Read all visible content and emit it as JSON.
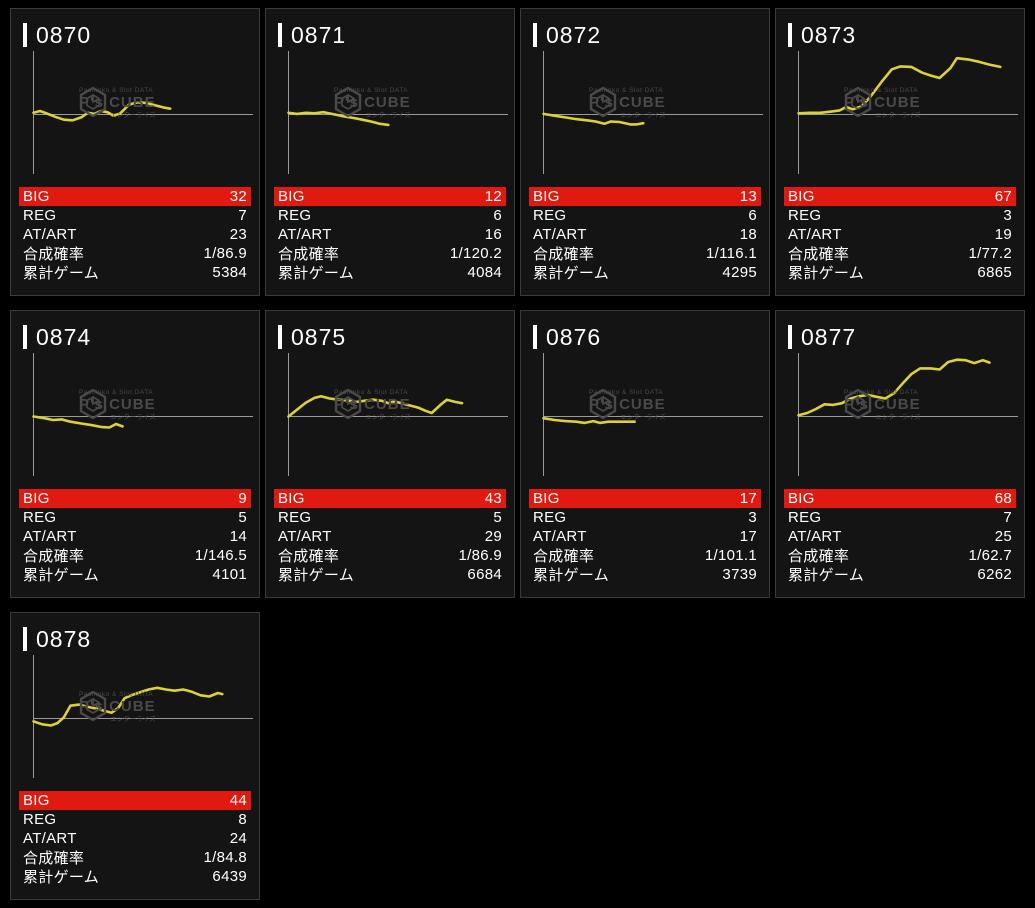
{
  "page": {
    "background": "#000000",
    "card_background": "#141414",
    "highlight_red": "#e01a10",
    "line_yellow": "#ddd13a",
    "axis_gray": "#9a9a9a"
  },
  "watermark": {
    "top_line": "Pachinko & Slot DATA",
    "brand": "P's CUBE",
    "tagline": "エンターライズ"
  },
  "stat_rows": [
    {
      "key": "big",
      "label": "BIG",
      "highlight": true
    },
    {
      "key": "reg",
      "label": "REG",
      "highlight": false
    },
    {
      "key": "at_art",
      "label": "AT/ART",
      "highlight": false
    },
    {
      "key": "combined_rate",
      "label": "合成確率",
      "highlight": false
    },
    {
      "key": "total_games",
      "label": "累計ゲーム",
      "highlight": false
    }
  ],
  "machines": [
    {
      "id": "0870",
      "big": "32",
      "reg": "7",
      "at_art": "23",
      "combined_rate": "1/86.9",
      "total_games": "5384"
    },
    {
      "id": "0871",
      "big": "12",
      "reg": "6",
      "at_art": "16",
      "combined_rate": "1/120.2",
      "total_games": "4084"
    },
    {
      "id": "0872",
      "big": "13",
      "reg": "6",
      "at_art": "18",
      "combined_rate": "1/116.1",
      "total_games": "4295"
    },
    {
      "id": "0873",
      "big": "67",
      "reg": "3",
      "at_art": "19",
      "combined_rate": "1/77.2",
      "total_games": "6865"
    },
    {
      "id": "0874",
      "big": "9",
      "reg": "5",
      "at_art": "14",
      "combined_rate": "1/146.5",
      "total_games": "4101"
    },
    {
      "id": "0875",
      "big": "43",
      "reg": "5",
      "at_art": "29",
      "combined_rate": "1/86.9",
      "total_games": "6684"
    },
    {
      "id": "0876",
      "big": "17",
      "reg": "3",
      "at_art": "17",
      "combined_rate": "1/101.1",
      "total_games": "3739"
    },
    {
      "id": "0877",
      "big": "68",
      "reg": "7",
      "at_art": "25",
      "combined_rate": "1/62.7",
      "total_games": "6262"
    },
    {
      "id": "0878",
      "big": "44",
      "reg": "8",
      "at_art": "24",
      "combined_rate": "1/84.8",
      "total_games": "6439"
    }
  ],
  "chart_data": [
    {
      "type": "line",
      "machine": "0870",
      "x_axis": "games (normalized)",
      "y_axis": "payout trend (normalized, 0 = start line)",
      "points": [
        [
          0,
          0.03
        ],
        [
          0.03,
          0.06
        ],
        [
          0.06,
          0.02
        ],
        [
          0.1,
          -0.04
        ],
        [
          0.14,
          -0.09
        ],
        [
          0.18,
          -0.1
        ],
        [
          0.22,
          -0.05
        ],
        [
          0.25,
          0.03
        ],
        [
          0.28,
          0.01
        ],
        [
          0.31,
          0.06
        ],
        [
          0.34,
          0.04
        ],
        [
          0.37,
          -0.02
        ],
        [
          0.4,
          0.02
        ],
        [
          0.44,
          0.17
        ],
        [
          0.48,
          0.21
        ],
        [
          0.52,
          0.2
        ],
        [
          0.56,
          0.16
        ],
        [
          0.6,
          0.12
        ],
        [
          0.63,
          0.1
        ]
      ]
    },
    {
      "type": "line",
      "machine": "0871",
      "x_axis": "games (normalized)",
      "y_axis": "payout trend (normalized, 0 = start line)",
      "points": [
        [
          0,
          0.03
        ],
        [
          0.04,
          0.01
        ],
        [
          0.08,
          0.03
        ],
        [
          0.12,
          0.02
        ],
        [
          0.16,
          0.04
        ],
        [
          0.2,
          0.01
        ],
        [
          0.25,
          -0.03
        ],
        [
          0.3,
          -0.06
        ],
        [
          0.34,
          -0.09
        ],
        [
          0.38,
          -0.12
        ],
        [
          0.42,
          -0.16
        ],
        [
          0.46,
          -0.18
        ]
      ]
    },
    {
      "type": "line",
      "machine": "0872",
      "x_axis": "games (normalized)",
      "y_axis": "payout trend (normalized, 0 = start line)",
      "points": [
        [
          0,
          0.01
        ],
        [
          0.05,
          -0.02
        ],
        [
          0.1,
          -0.05
        ],
        [
          0.15,
          -0.08
        ],
        [
          0.2,
          -0.1
        ],
        [
          0.24,
          -0.12
        ],
        [
          0.28,
          -0.16
        ],
        [
          0.31,
          -0.12
        ],
        [
          0.35,
          -0.13
        ],
        [
          0.4,
          -0.17
        ],
        [
          0.43,
          -0.17
        ],
        [
          0.46,
          -0.15
        ]
      ]
    },
    {
      "type": "line",
      "machine": "0873",
      "x_axis": "games (normalized)",
      "y_axis": "payout trend (normalized, 0 = start line)",
      "points": [
        [
          0,
          0.02
        ],
        [
          0.05,
          0.03
        ],
        [
          0.1,
          0.03
        ],
        [
          0.15,
          0.05
        ],
        [
          0.19,
          0.07
        ],
        [
          0.22,
          0.13
        ],
        [
          0.25,
          0.09
        ],
        [
          0.29,
          0.14
        ],
        [
          0.33,
          0.3
        ],
        [
          0.38,
          0.55
        ],
        [
          0.43,
          0.78
        ],
        [
          0.47,
          0.83
        ],
        [
          0.52,
          0.82
        ],
        [
          0.57,
          0.72
        ],
        [
          0.61,
          0.67
        ],
        [
          0.65,
          0.63
        ],
        [
          0.7,
          0.8
        ],
        [
          0.73,
          0.97
        ],
        [
          0.78,
          0.95
        ],
        [
          0.83,
          0.91
        ],
        [
          0.88,
          0.86
        ],
        [
          0.93,
          0.82
        ]
      ]
    },
    {
      "type": "line",
      "machine": "0874",
      "x_axis": "games (normalized)",
      "y_axis": "payout trend (normalized, 0 = start line)",
      "points": [
        [
          0,
          0.0
        ],
        [
          0.05,
          -0.03
        ],
        [
          0.09,
          -0.06
        ],
        [
          0.13,
          -0.05
        ],
        [
          0.17,
          -0.09
        ],
        [
          0.22,
          -0.12
        ],
        [
          0.27,
          -0.15
        ],
        [
          0.31,
          -0.18
        ],
        [
          0.35,
          -0.19
        ],
        [
          0.38,
          -0.13
        ],
        [
          0.41,
          -0.17
        ]
      ]
    },
    {
      "type": "line",
      "machine": "0875",
      "x_axis": "games (normalized)",
      "y_axis": "payout trend (normalized, 0 = start line)",
      "points": [
        [
          0,
          0.0
        ],
        [
          0.04,
          0.12
        ],
        [
          0.08,
          0.24
        ],
        [
          0.12,
          0.32
        ],
        [
          0.15,
          0.35
        ],
        [
          0.19,
          0.31
        ],
        [
          0.23,
          0.29
        ],
        [
          0.27,
          0.28
        ],
        [
          0.31,
          0.25
        ],
        [
          0.35,
          0.27
        ],
        [
          0.39,
          0.29
        ],
        [
          0.43,
          0.27
        ],
        [
          0.46,
          0.23
        ],
        [
          0.49,
          0.26
        ],
        [
          0.52,
          0.23
        ],
        [
          0.56,
          0.19
        ],
        [
          0.6,
          0.15
        ],
        [
          0.63,
          0.1
        ],
        [
          0.66,
          0.06
        ],
        [
          0.7,
          0.2
        ],
        [
          0.73,
          0.29
        ],
        [
          0.77,
          0.25
        ],
        [
          0.8,
          0.23
        ]
      ]
    },
    {
      "type": "line",
      "machine": "0876",
      "x_axis": "games (normalized)",
      "y_axis": "payout trend (normalized, 0 = start line)",
      "points": [
        [
          0,
          -0.03
        ],
        [
          0.05,
          -0.06
        ],
        [
          0.1,
          -0.08
        ],
        [
          0.15,
          -0.09
        ],
        [
          0.19,
          -0.11
        ],
        [
          0.23,
          -0.08
        ],
        [
          0.26,
          -0.11
        ],
        [
          0.3,
          -0.09
        ],
        [
          0.35,
          -0.09
        ],
        [
          0.39,
          -0.09
        ],
        [
          0.42,
          -0.09
        ]
      ]
    },
    {
      "type": "line",
      "machine": "0877",
      "x_axis": "games (normalized)",
      "y_axis": "payout trend (normalized, 0 = start line)",
      "points": [
        [
          0,
          0.02
        ],
        [
          0.04,
          0.06
        ],
        [
          0.08,
          0.13
        ],
        [
          0.12,
          0.21
        ],
        [
          0.16,
          0.2
        ],
        [
          0.2,
          0.23
        ],
        [
          0.24,
          0.31
        ],
        [
          0.28,
          0.35
        ],
        [
          0.32,
          0.37
        ],
        [
          0.36,
          0.34
        ],
        [
          0.4,
          0.31
        ],
        [
          0.44,
          0.4
        ],
        [
          0.48,
          0.57
        ],
        [
          0.52,
          0.73
        ],
        [
          0.56,
          0.83
        ],
        [
          0.61,
          0.83
        ],
        [
          0.65,
          0.81
        ],
        [
          0.69,
          0.94
        ],
        [
          0.73,
          0.98
        ],
        [
          0.77,
          0.97
        ],
        [
          0.81,
          0.92
        ],
        [
          0.85,
          0.97
        ],
        [
          0.88,
          0.93
        ]
      ]
    },
    {
      "type": "line",
      "machine": "0878",
      "x_axis": "games (normalized)",
      "y_axis": "payout trend (normalized, 0 = start line)",
      "points": [
        [
          0,
          -0.05
        ],
        [
          0.04,
          -0.1
        ],
        [
          0.08,
          -0.12
        ],
        [
          0.11,
          -0.08
        ],
        [
          0.14,
          0.02
        ],
        [
          0.17,
          0.22
        ],
        [
          0.21,
          0.24
        ],
        [
          0.25,
          0.2
        ],
        [
          0.29,
          0.17
        ],
        [
          0.33,
          0.13
        ],
        [
          0.36,
          0.1
        ],
        [
          0.39,
          0.18
        ],
        [
          0.42,
          0.35
        ],
        [
          0.45,
          0.4
        ],
        [
          0.49,
          0.45
        ],
        [
          0.53,
          0.5
        ],
        [
          0.57,
          0.53
        ],
        [
          0.61,
          0.5
        ],
        [
          0.65,
          0.48
        ],
        [
          0.69,
          0.5
        ],
        [
          0.73,
          0.46
        ],
        [
          0.77,
          0.4
        ],
        [
          0.81,
          0.38
        ],
        [
          0.85,
          0.44
        ],
        [
          0.87,
          0.42
        ]
      ]
    }
  ]
}
